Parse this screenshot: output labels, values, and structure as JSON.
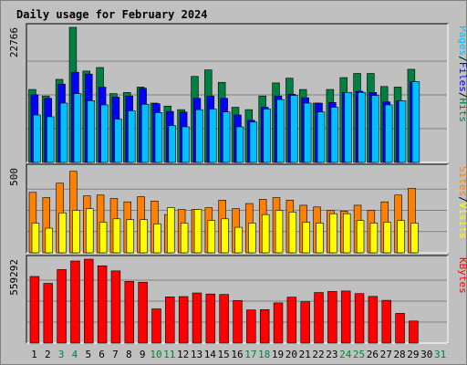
{
  "chart_data": {
    "type": "bar",
    "title": "Daily usage for February 2024",
    "days": [
      1,
      2,
      3,
      4,
      5,
      6,
      7,
      8,
      9,
      10,
      11,
      12,
      13,
      14,
      15,
      16,
      17,
      18,
      19,
      20,
      21,
      22,
      23,
      24,
      25,
      26,
      27,
      28,
      29,
      30,
      31
    ],
    "weekend_days": [
      3,
      4,
      10,
      11,
      17,
      18,
      24,
      25,
      31
    ],
    "colors": {
      "hits": "#008040",
      "files": "#0000ff",
      "pages": "#00c0ff",
      "visits": "#ffff00",
      "sites": "#ff8000",
      "kbytes": "#ff0000",
      "title": "#0000ff",
      "weekday_label": "#000000",
      "weekend_label": "#008040",
      "plot_bg": "#c0c0c0",
      "grid": "#808080"
    },
    "panels": [
      {
        "name": "hits-files-pages",
        "ymax_label": "22766",
        "ymax": 22766,
        "legend": [
          {
            "text": "Pages",
            "color": "#00c0ff"
          },
          {
            "text": "/",
            "color": "#000000"
          },
          {
            "text": "Files",
            "color": "#0000ff"
          },
          {
            "text": "/",
            "color": "#000000"
          },
          {
            "text": "Hits",
            "color": "#008040"
          }
        ],
        "series": [
          {
            "name": "Hits",
            "color": "#008040",
            "values": [
              12300,
              11200,
              14000,
              22766,
              15400,
              16000,
              11600,
              11800,
              12700,
              10000,
              9500,
              8900,
              14500,
              15600,
              13500,
              9300,
              8900,
              11200,
              13400,
              14200,
              12300,
              10000,
              12300,
              14300,
              15000,
              15000,
              12800,
              12700,
              15700,
              0,
              0
            ]
          },
          {
            "name": "Files",
            "color": "#0000ff",
            "values": [
              11400,
              10800,
              13200,
              15200,
              14900,
              12700,
              11000,
              11200,
              12500,
              9900,
              8600,
              8500,
              10800,
              11200,
              10800,
              8000,
              7100,
              9300,
              11200,
              11500,
              10900,
              10000,
              10100,
              11800,
              12000,
              11800,
              10200,
              10400,
              13600,
              0,
              0
            ]
          },
          {
            "name": "Pages",
            "color": "#00c0ff",
            "values": [
              8000,
              7700,
              10000,
              11600,
              10400,
              9700,
              7300,
              8700,
              9800,
              8400,
              6200,
              6000,
              8900,
              9000,
              8500,
              6000,
              6800,
              9000,
              10600,
              11300,
              10000,
              8500,
              9300,
              11800,
              11800,
              11300,
              9700,
              10400,
              13600,
              0,
              0
            ]
          }
        ]
      },
      {
        "name": "visits-sites",
        "ymax_label": "500",
        "ymax": 500,
        "legend": [
          {
            "text": "Sites",
            "color": "#ff8000"
          },
          {
            "text": "/",
            "color": "#000000"
          },
          {
            "text": "Visits",
            "color": "#ffff00"
          }
        ],
        "series": [
          {
            "name": "Sites",
            "color": "#ff8000",
            "values": [
              356,
              325,
              410,
              480,
              335,
              340,
              320,
              300,
              330,
              305,
              225,
              255,
              255,
              265,
              310,
              260,
              290,
              315,
              325,
              310,
              280,
              270,
              250,
              245,
              280,
              250,
              300,
              340,
              380,
              0,
              0
            ]
          },
          {
            "name": "Visits",
            "color": "#ffff00",
            "values": [
              175,
              145,
              235,
              250,
              260,
              180,
              200,
              195,
              195,
              170,
              265,
              175,
              255,
              190,
              200,
              150,
              175,
              225,
              250,
              240,
              180,
              175,
              230,
              230,
              190,
              175,
              180,
              190,
              175,
              0,
              0
            ]
          }
        ]
      },
      {
        "name": "kbytes",
        "ymax_label": "559292",
        "ymax": 559292,
        "legend": [
          {
            "text": "KBytes",
            "color": "#ff0000"
          }
        ],
        "series": [
          {
            "name": "KBytes",
            "color": "#ff0000",
            "values": [
              444000,
              398000,
              490000,
              547000,
              559292,
              515000,
              481000,
              411000,
              406000,
              228000,
              308000,
              310000,
              334000,
              327000,
              324000,
              284000,
              221000,
              223000,
              268000,
              306000,
              275000,
              337000,
              344000,
              347000,
              330000,
              311000,
              285000,
              198000,
              147000,
              0,
              0
            ]
          }
        ]
      }
    ]
  }
}
